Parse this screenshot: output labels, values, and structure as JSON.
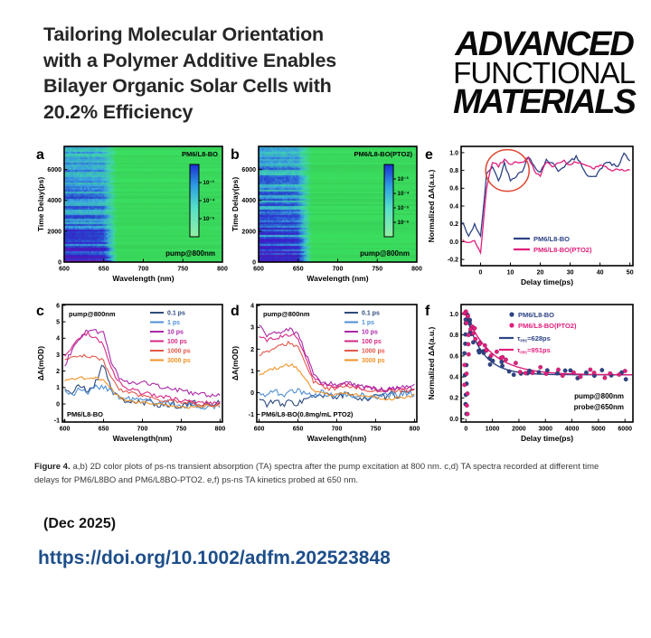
{
  "header": {
    "title_lines": [
      "Tailoring Molecular Orientation",
      "with a Polymer Additive Enables",
      "Bilayer Organic Solar Cells with",
      "20.2% Efficiency"
    ],
    "logo_lines": [
      "ADVANCED",
      "FUNCTIONAL",
      "MATERIALS"
    ]
  },
  "caption": {
    "label": "Figure 4.",
    "text": "a,b) 2D color plots of ps-ns transient absorption (TA) spectra after the pump excitation at 800 nm. c,d) TA spectra recorded at different time delays for PM6/L8BO and PM6/L8BO-PTO2. e,f) ps-ns TA kinetics probed at 650 nm."
  },
  "footer": {
    "date": "(Dec 2025)",
    "doi": "https://doi.org/10.1002/adfm.202523848"
  },
  "colors": {
    "doi_link": "#1d4e8a",
    "title_text": "#262626",
    "series_navy": "#2e4386",
    "series_pink": "#e01f7d",
    "circle_annotation": "#e0452f",
    "heatmap_green": "#3ada5c",
    "heatmap_blue": "#2846d0",
    "heatmap_purple": "#6e16b4"
  },
  "chart_data": [
    {
      "panel": "a",
      "type": "heatmap",
      "title": "PM6/L8-BO",
      "note": "pump@800nm",
      "xlabel": "Wavelength (nm)",
      "ylabel": "Time Delay(ps)",
      "xlim": [
        600,
        800
      ],
      "ylim": [
        0,
        7500
      ],
      "xticks": [
        "600",
        "650",
        "700",
        "750",
        "800"
      ],
      "yticks": [
        "0",
        "2000",
        "4000",
        "6000"
      ],
      "colorbar_ticks": [
        "10⁻³",
        "10⁻⁴",
        "10⁻⁵"
      ],
      "signal_band_nm": [
        600,
        666
      ],
      "description": "Bleach band at 600-665 nm, strongest (dark blue/purple) at early delays, decaying toward 7500 ps; green elsewhere"
    },
    {
      "panel": "b",
      "type": "heatmap",
      "title": "PM6/L8-BO(PTO2)",
      "note": "pump@800nm",
      "xlabel": "Wavelength (nm)",
      "ylabel": "Time Delay(ps)",
      "xlim": [
        600,
        800
      ],
      "ylim": [
        0,
        7500
      ],
      "xticks": [
        "600",
        "650",
        "700",
        "750",
        "800"
      ],
      "yticks": [
        "0",
        "2000",
        "4000",
        "6000"
      ],
      "colorbar_ticks": [
        "10⁻³",
        "10⁻⁴",
        "10⁻⁵",
        "10⁻⁶"
      ],
      "signal_band_nm": [
        600,
        666
      ],
      "description": "Bleach band at 600-665 nm persisting longer than in panel a"
    },
    {
      "panel": "c",
      "type": "line",
      "note": "pump@800nm",
      "sample": "PM6/L8-BO",
      "xlabel": "Wavelength(nm)",
      "ylabel": "ΔA(mOD)",
      "xlim": [
        597,
        803
      ],
      "ylim": [
        -1.1,
        6.05
      ],
      "xticks": [
        "600",
        "650",
        "700",
        "750",
        "800"
      ],
      "yticks": [
        "-1",
        "0",
        "1",
        "2",
        "3",
        "4",
        "5",
        "6"
      ],
      "x": [
        600,
        610,
        620,
        630,
        640,
        650,
        660,
        670,
        680,
        690,
        700,
        710,
        720,
        730,
        740,
        750,
        760,
        770,
        780,
        790,
        800
      ],
      "series": [
        {
          "name": "0.1 ps",
          "color": "#2e4a7d",
          "noise": 0.45,
          "values": [
            0.9,
            0.7,
            1.1,
            0.8,
            1.3,
            2.5,
            0.9,
            0.3,
            0.2,
            0.1,
            0.0,
            0.1,
            0.0,
            -0.1,
            0.0,
            -0.1,
            0.0,
            0.0,
            -0.1,
            0.0,
            0.1
          ]
        },
        {
          "name": "1 ps",
          "color": "#4e8fd5",
          "noise": 0.35,
          "values": [
            0.8,
            0.6,
            0.9,
            0.7,
            1.0,
            1.1,
            0.8,
            0.4,
            0.3,
            0.3,
            0.2,
            0.2,
            0.1,
            0.1,
            0.0,
            -0.1,
            -0.1,
            -0.2,
            -0.2,
            -0.1,
            -0.2
          ]
        },
        {
          "name": "10 ps",
          "color": "#a928a8",
          "noise": 0.3,
          "values": [
            2.3,
            3.4,
            4.0,
            4.5,
            4.4,
            4.3,
            2.6,
            1.6,
            1.4,
            1.3,
            1.3,
            1.2,
            1.1,
            1.0,
            0.9,
            0.8,
            0.7,
            0.6,
            0.6,
            0.5,
            0.6
          ]
        },
        {
          "name": "100 ps",
          "color": "#d62884",
          "noise": 0.25,
          "values": [
            2.9,
            3.5,
            4.1,
            4.3,
            4.0,
            3.6,
            2.2,
            1.3,
            1.0,
            0.8,
            0.7,
            0.6,
            0.5,
            0.4,
            0.3,
            0.2,
            0.2,
            0.1,
            0.1,
            0.0,
            0.1
          ]
        },
        {
          "name": "1000 ps",
          "color": "#e2574a",
          "noise": 0.22,
          "values": [
            2.7,
            2.9,
            3.0,
            2.8,
            2.9,
            2.6,
            1.6,
            0.9,
            0.7,
            0.6,
            0.5,
            0.4,
            0.3,
            0.2,
            0.2,
            0.1,
            0.1,
            0.0,
            0.0,
            -0.1,
            0.0
          ]
        },
        {
          "name": "3000 ps",
          "color": "#f19327",
          "noise": 0.18,
          "values": [
            1.4,
            1.5,
            1.6,
            1.5,
            1.6,
            1.4,
            0.9,
            0.4,
            0.2,
            0.1,
            0.1,
            0.0,
            0.0,
            -0.1,
            -0.1,
            -0.2,
            -0.2,
            -0.2,
            -0.1,
            -0.1,
            0.0
          ]
        }
      ]
    },
    {
      "panel": "d",
      "type": "line",
      "note": "pump@800nm",
      "sample": "PM6/L8-BO(0.8mg/mL PTO2)",
      "xlabel": "Wavelength(nm)",
      "ylabel": "ΔA(mOD)",
      "xlim": [
        597,
        803
      ],
      "ylim": [
        -1.35,
        4.05
      ],
      "xticks": [
        "600",
        "650",
        "700",
        "750",
        "800"
      ],
      "yticks": [
        "-1",
        "0",
        "1",
        "2",
        "3",
        "4"
      ],
      "x": [
        600,
        610,
        620,
        630,
        640,
        650,
        660,
        670,
        680,
        690,
        700,
        710,
        720,
        730,
        740,
        750,
        760,
        770,
        780,
        790,
        800
      ],
      "series": [
        {
          "name": "0.1 ps",
          "color": "#2e4a7d",
          "noise": 0.32,
          "values": [
            -0.3,
            -0.5,
            -0.4,
            -0.6,
            -0.4,
            -0.5,
            -0.3,
            -0.2,
            -0.2,
            -0.1,
            -0.2,
            -0.1,
            -0.2,
            -0.2,
            -0.3,
            -0.2,
            -0.2,
            -0.1,
            -0.1,
            0.0,
            0.0
          ]
        },
        {
          "name": "1 ps",
          "color": "#4e8fd5",
          "noise": 0.26,
          "values": [
            0.0,
            -0.1,
            0.1,
            -0.1,
            0.0,
            0.1,
            -0.1,
            -0.1,
            0.0,
            -0.1,
            -0.1,
            -0.1,
            -0.2,
            -0.1,
            -0.2,
            -0.2,
            -0.1,
            -0.1,
            -0.1,
            0.0,
            -0.1
          ]
        },
        {
          "name": "10 ps",
          "color": "#a928a8",
          "noise": 0.22,
          "values": [
            3.1,
            2.6,
            2.7,
            2.8,
            2.9,
            2.7,
            1.8,
            0.8,
            0.5,
            0.4,
            0.4,
            0.5,
            0.4,
            0.3,
            0.2,
            0.2,
            0.1,
            0.2,
            0.2,
            0.3,
            0.3
          ]
        },
        {
          "name": "100 ps",
          "color": "#d62884",
          "noise": 0.2,
          "values": [
            2.6,
            2.4,
            2.5,
            2.6,
            2.7,
            2.5,
            1.6,
            0.7,
            0.4,
            0.3,
            0.3,
            0.4,
            0.3,
            0.2,
            0.2,
            0.1,
            0.1,
            0.1,
            0.2,
            0.2,
            0.2
          ]
        },
        {
          "name": "1000 ps",
          "color": "#e2574a",
          "noise": 0.18,
          "values": [
            1.7,
            1.9,
            2.0,
            2.2,
            2.3,
            2.1,
            1.3,
            0.5,
            0.3,
            0.2,
            0.2,
            0.3,
            0.2,
            0.2,
            0.1,
            0.1,
            0.0,
            0.1,
            0.1,
            0.1,
            0.2
          ]
        },
        {
          "name": "3000 ps",
          "color": "#f19327",
          "noise": 0.15,
          "values": [
            0.8,
            1.0,
            1.1,
            1.2,
            1.3,
            1.1,
            0.6,
            0.1,
            0.0,
            -0.1,
            -0.1,
            0.0,
            -0.1,
            -0.1,
            -0.2,
            -0.2,
            -0.3,
            -0.3,
            -0.2,
            -0.2,
            -0.1
          ]
        }
      ]
    },
    {
      "panel": "e",
      "type": "line",
      "xlabel": "Delay time(ps)",
      "ylabel": "Normalized ΔA(a.u.)",
      "xlim": [
        -6.5,
        51
      ],
      "ylim": [
        -0.27,
        1.07
      ],
      "xticks": [
        "0",
        "10",
        "20",
        "30",
        "40",
        "50"
      ],
      "yticks": [
        "-0.2",
        "0.0",
        "0.2",
        "0.4",
        "0.6",
        "0.8",
        "1.0"
      ],
      "highlight_circle": {
        "x_ps": 9,
        "y": 0.8,
        "color": "#e0452f"
      },
      "x": [
        -6,
        -4,
        -2,
        0,
        2,
        4,
        6,
        8,
        10,
        12,
        14,
        16,
        18,
        20,
        22,
        24,
        26,
        28,
        30,
        32,
        34,
        36,
        38,
        40,
        42,
        44,
        46,
        48,
        50
      ],
      "series": [
        {
          "name": "PM6/L8-BO",
          "color": "#2e4386",
          "noise": 0.035,
          "values": [
            0.22,
            0.05,
            0.2,
            0.05,
            0.75,
            0.85,
            0.68,
            0.88,
            0.7,
            0.74,
            0.8,
            0.95,
            0.85,
            0.78,
            0.92,
            0.88,
            0.8,
            0.85,
            0.9,
            0.95,
            0.85,
            0.74,
            0.72,
            0.8,
            0.9,
            0.87,
            0.83,
            1.0,
            0.9
          ]
        },
        {
          "name": "PM6/L8-BO(PTO2)",
          "color": "#e01f7d",
          "noise": 0.03,
          "values": [
            0.02,
            -0.02,
            0.0,
            -0.12,
            0.6,
            0.9,
            0.85,
            0.92,
            0.87,
            0.9,
            0.88,
            0.95,
            0.8,
            0.73,
            0.9,
            0.85,
            0.88,
            0.92,
            0.85,
            0.9,
            0.88,
            0.85,
            0.82,
            0.86,
            0.84,
            0.8,
            0.82,
            0.8,
            0.82
          ]
        }
      ]
    },
    {
      "panel": "f",
      "type": "scatter",
      "xlabel": "Delay time(ps)",
      "ylabel": "Normalized ΔA(a.u.)",
      "xlim": [
        -180,
        6300
      ],
      "ylim": [
        -0.03,
        1.09
      ],
      "xticks": [
        "0",
        "1000",
        "2000",
        "3000",
        "4000",
        "5000",
        "6000"
      ],
      "yticks": [
        "0.0",
        "0.2",
        "0.4",
        "0.6",
        "0.8",
        "1.0"
      ],
      "annotations": [
        "pump@800nm",
        "probe@650nm"
      ],
      "x_samples": [
        30,
        70,
        110,
        160,
        210,
        270,
        330,
        400,
        480,
        560,
        650,
        750,
        860,
        980,
        1100,
        1250,
        1400,
        1600,
        1800,
        2000,
        2250,
        2500,
        2800,
        3100,
        3400,
        3700,
        4000,
        4300,
        4600,
        4900,
        5200,
        5500,
        5800,
        6000
      ],
      "rise_column": {
        "x_ps": 25,
        "y_min": 0.04,
        "y_max": 1.0,
        "points_per_series": 11
      },
      "series": [
        {
          "name": "PM6/L8-BO",
          "color": "#2e4386",
          "tau_ps": 628,
          "baseline": 0.42,
          "amplitude": 0.58,
          "noise": 0.045,
          "fit_label": {
            "sym": "τ",
            "sub": "rec",
            "rest": "=628ps"
          }
        },
        {
          "name": "PM6/L8-BO(PTO2)",
          "color": "#e01f7d",
          "tau_ps": 951,
          "baseline": 0.42,
          "amplitude": 0.58,
          "noise": 0.045,
          "fit_label": {
            "sym": "τ",
            "sub": "rec",
            "rest": "=951ps"
          }
        }
      ]
    }
  ]
}
